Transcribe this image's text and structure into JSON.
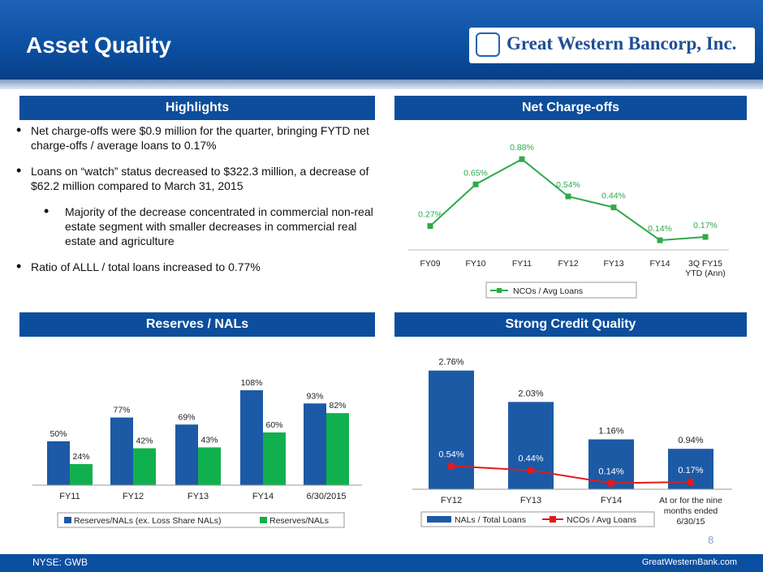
{
  "header": {
    "title": "Asset Quality",
    "logo_text": "Great Western Bancorp, Inc."
  },
  "sections": {
    "highlights": "Highlights",
    "net_chargeoffs": "Net Charge-offs",
    "reserves": "Reserves / NALs",
    "credit_quality": "Strong Credit Quality"
  },
  "bullets": [
    "Net charge-offs were $0.9 million for the quarter, bringing FYTD net charge-offs / average loans to 0.17%",
    "Loans on “watch” status decreased to $322.3 million, a decrease of $62.2 million compared to March 31, 2015",
    "Majority of the decrease concentrated in commercial non-real estate segment with smaller decreases in commercial real estate and agriculture",
    "Ratio of ALLL / total loans increased to 0.77%"
  ],
  "footer": {
    "left": "NYSE: GWB",
    "right": "GreatWesternBank.com",
    "page": "8"
  },
  "chart_data": [
    {
      "type": "line",
      "categories": [
        "FY09",
        "FY10",
        "FY11",
        "FY12",
        "FY13",
        "FY14",
        "3Q FY15 YTD (Ann)"
      ],
      "series": [
        {
          "name": "NCOs / Avg Loans",
          "values": [
            0.27,
            0.65,
            0.88,
            0.54,
            0.44,
            0.14,
            0.17
          ],
          "labels": [
            "0.27%",
            "0.65%",
            "0.88%",
            "0.54%",
            "0.44%",
            "0.14%",
            "0.17%"
          ]
        }
      ],
      "ylim": [
        0,
        1.0
      ],
      "colors": [
        "#2eaa4a"
      ]
    },
    {
      "type": "bar",
      "categories": [
        "FY11",
        "FY12",
        "FY13",
        "FY14",
        "6/30/2015"
      ],
      "series": [
        {
          "name": "Reserves/NALs (ex. Loss Share NALs)",
          "values": [
            50,
            77,
            69,
            108,
            93
          ],
          "labels": [
            "50%",
            "77%",
            "69%",
            "108%",
            "93%"
          ]
        },
        {
          "name": "Reserves/NALs",
          "values": [
            24,
            42,
            43,
            60,
            82
          ],
          "labels": [
            "24%",
            "42%",
            "43%",
            "60%",
            "82%"
          ]
        }
      ],
      "ylim": [
        0,
        120
      ],
      "colors": [
        "#1c5aa6",
        "#11b04f"
      ]
    },
    {
      "type": "bar",
      "categories": [
        "FY12",
        "FY13",
        "FY14",
        "At or for the nine months ended 6/30/15"
      ],
      "series": [
        {
          "name": "NALs / Total Loans",
          "type": "bar",
          "values": [
            2.76,
            2.03,
            1.16,
            0.94
          ],
          "labels": [
            "2.76%",
            "2.03%",
            "1.16%",
            "0.94%"
          ]
        },
        {
          "name": "NCOs / Avg Loans",
          "type": "line",
          "values": [
            0.54,
            0.44,
            0.14,
            0.17
          ],
          "labels": [
            "0.54%",
            "0.44%",
            "0.14%",
            "0.17%"
          ]
        }
      ],
      "ylim": [
        0,
        3.0
      ],
      "colors": [
        "#1c5aa6",
        "#e01b1b"
      ]
    }
  ]
}
